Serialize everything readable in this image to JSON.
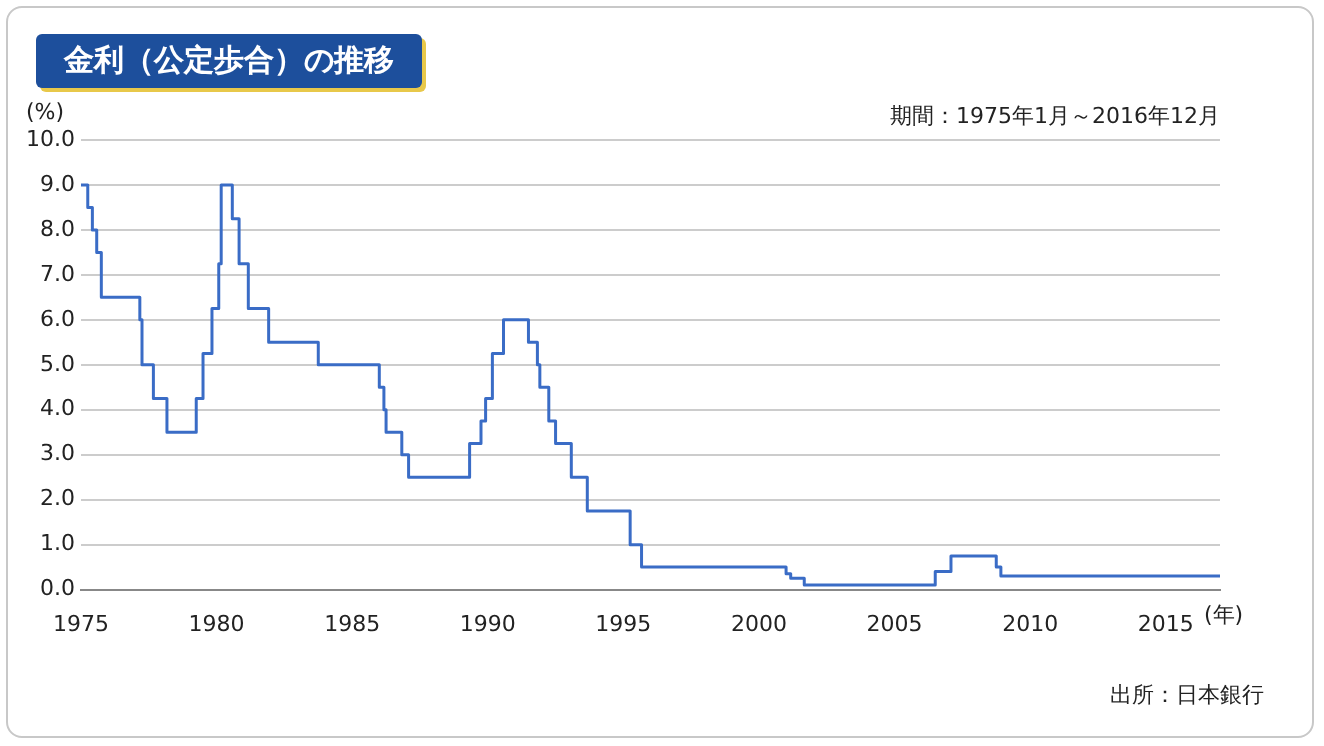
{
  "chart_data": {
    "type": "step",
    "title": "金利（公定歩合）の推移",
    "subtitle": "期間：1975年1月～2016年12月",
    "ylabel": "(%)",
    "xlabel": "(年)",
    "annotations": [
      "出所：日本銀行"
    ],
    "x": [
      1975.0,
      1975.25,
      1975.42,
      1975.58,
      1975.75,
      1977.17,
      1977.25,
      1977.67,
      1978.17,
      1979.25,
      1979.5,
      1979.83,
      1980.08,
      1980.17,
      1980.58,
      1980.83,
      1981.17,
      1981.92,
      1983.75,
      1986.0,
      1986.17,
      1986.25,
      1986.83,
      1987.08,
      1989.33,
      1989.75,
      1989.92,
      1990.17,
      1990.58,
      1991.5,
      1991.83,
      1991.92,
      1992.25,
      1992.5,
      1993.08,
      1993.67,
      1995.25,
      1995.67,
      2001.0,
      2001.17,
      2001.67,
      2006.5,
      2007.08,
      2008.75,
      2008.92,
      2017.0
    ],
    "series": [
      {
        "color": "#3a6cc6",
        "values": [
          9.0,
          8.5,
          8.0,
          7.5,
          6.5,
          6.0,
          5.0,
          4.25,
          3.5,
          4.25,
          5.25,
          6.25,
          7.25,
          9.0,
          8.25,
          7.25,
          6.25,
          5.5,
          5.0,
          4.5,
          4.0,
          3.5,
          3.0,
          2.5,
          3.25,
          3.75,
          4.25,
          5.25,
          6.0,
          5.5,
          5.0,
          4.5,
          3.75,
          3.25,
          2.5,
          1.75,
          1.0,
          0.5,
          0.35,
          0.25,
          0.1,
          0.4,
          0.75,
          0.5,
          0.3,
          0.3
        ]
      }
    ],
    "xlim": [
      1975,
      2017
    ],
    "xticks": [
      1975,
      1980,
      1985,
      1990,
      1995,
      2000,
      2005,
      2010,
      2015
    ],
    "ylim": [
      0,
      10
    ],
    "yticks": [
      {
        "value": 0,
        "label": "0.0"
      },
      {
        "value": 1,
        "label": "1.0"
      },
      {
        "value": 2,
        "label": "2.0"
      },
      {
        "value": 3,
        "label": "3.0"
      },
      {
        "value": 4,
        "label": "4.0"
      },
      {
        "value": 5,
        "label": "5.0"
      },
      {
        "value": 6,
        "label": "6.0"
      },
      {
        "value": 7,
        "label": "7.0"
      },
      {
        "value": 8,
        "label": "8.0"
      },
      {
        "value": 9,
        "label": "9.0"
      },
      {
        "value": 10,
        "label": "10.0"
      }
    ],
    "grid": "y",
    "legend": false,
    "marker": "none",
    "line_style": "solid"
  }
}
